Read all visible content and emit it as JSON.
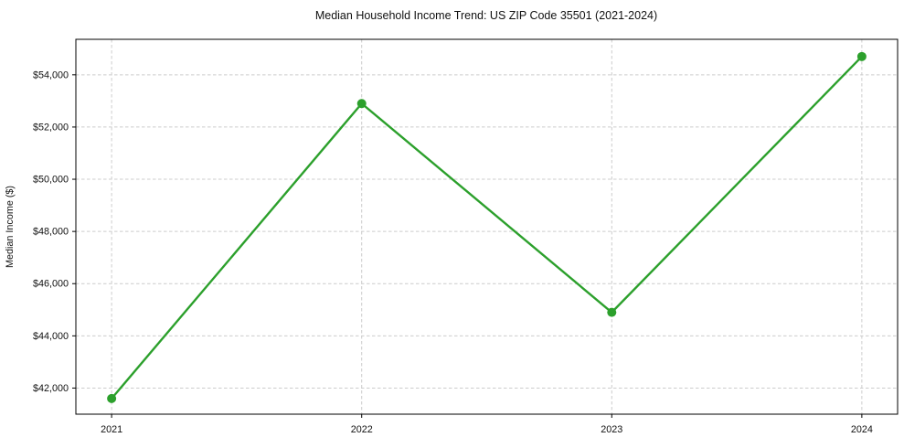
{
  "chart_data": {
    "type": "line",
    "title": "Median Household Income Trend: US ZIP Code 35501 (2021-2024)",
    "xlabel": "",
    "ylabel": "Median Income ($)",
    "x": [
      "2021",
      "2022",
      "2023",
      "2024"
    ],
    "series": [
      {
        "name": "Median Income",
        "values": [
          41600,
          52900,
          44900,
          54700
        ]
      }
    ],
    "yticks": [
      42000,
      44000,
      46000,
      48000,
      50000,
      52000,
      54000
    ],
    "ytick_labels": [
      "$42,000",
      "$44,000",
      "$46,000",
      "$48,000",
      "$50,000",
      "$52,000",
      "$54,000"
    ],
    "ylim": [
      41000,
      55360
    ],
    "grid": true,
    "grid_style": "dashed",
    "legend": "none",
    "marker": "circle",
    "colors": {
      "line": "#2ca02c",
      "marker": "#2ca02c",
      "grid": "#cccccc",
      "axis": "#000000",
      "text": "#111111",
      "background": "#ffffff"
    }
  }
}
